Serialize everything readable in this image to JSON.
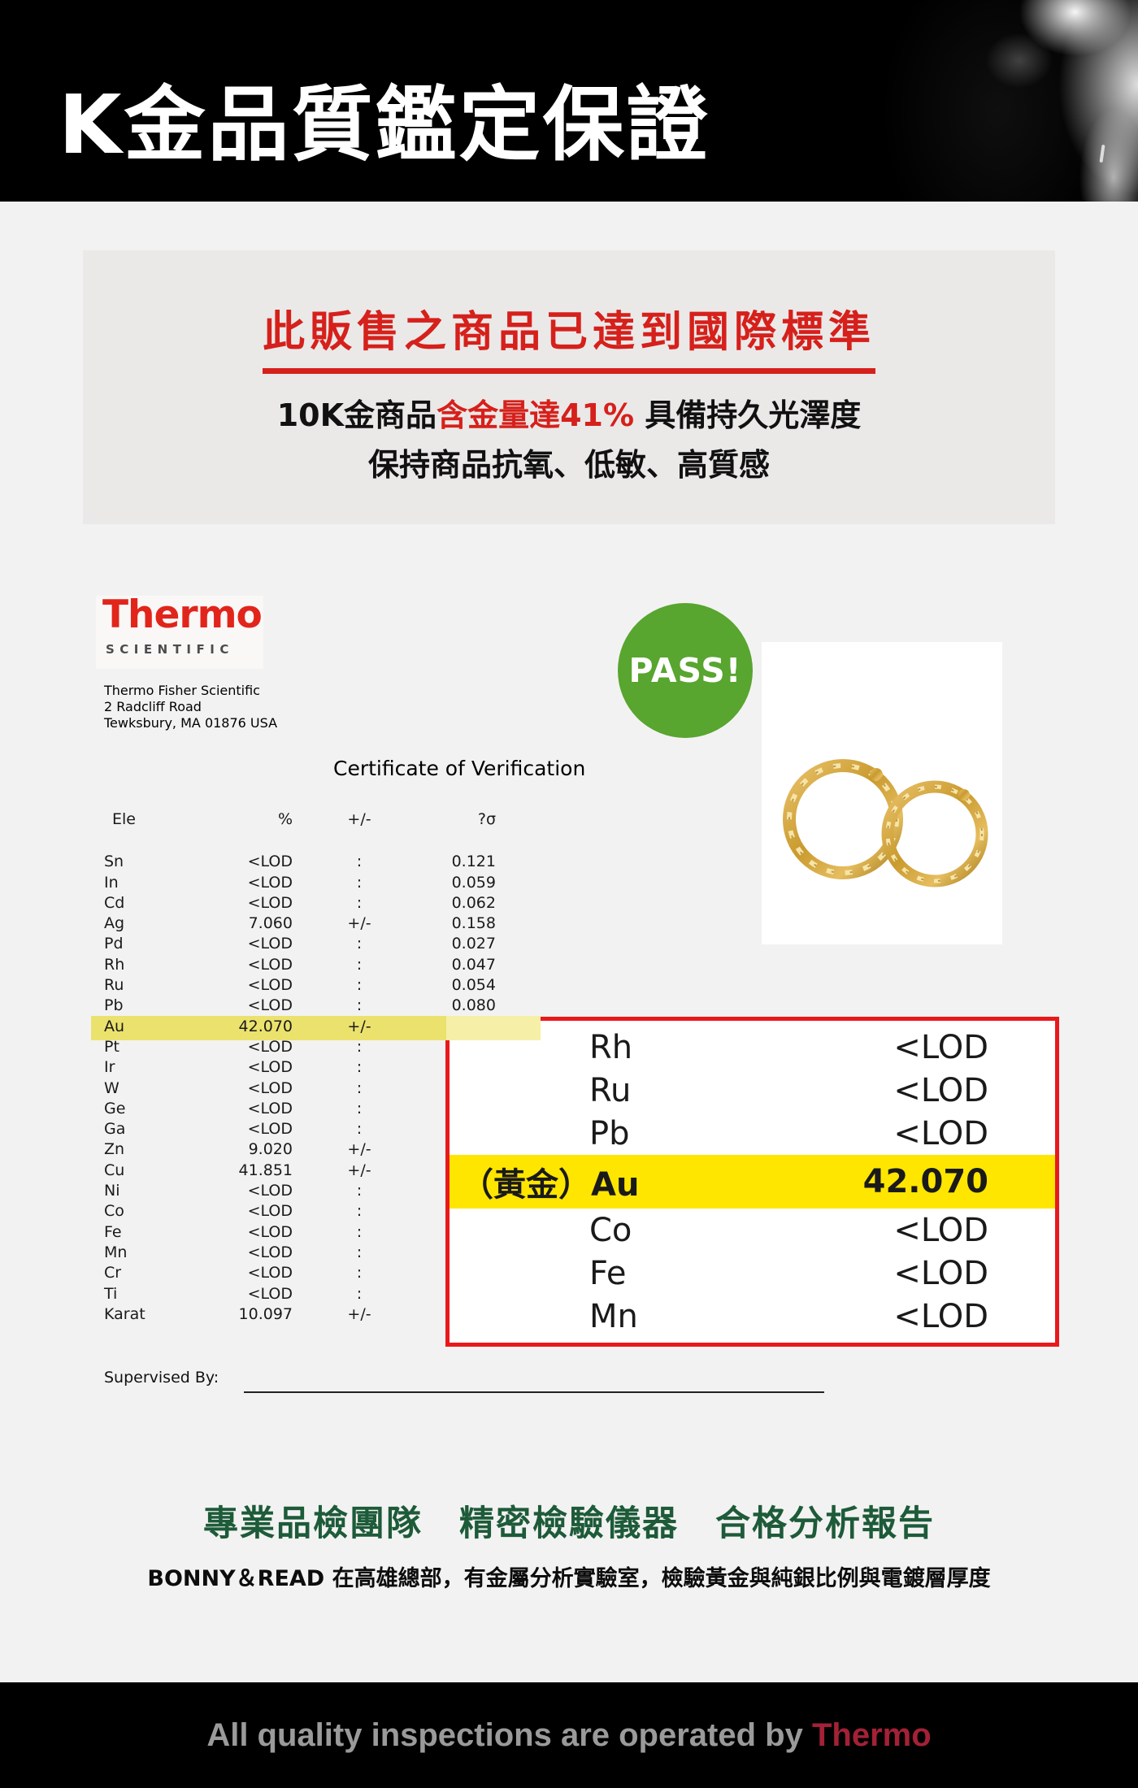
{
  "header": {
    "title": "K金品質鑑定保證"
  },
  "card": {
    "title": "此販售之商品已達到國際標準",
    "line2_a": "10K金商品",
    "line2_b": "含金量達41%",
    "line2_c": " 具備持久光澤度",
    "line3": "保持商品抗氧、低敏、高質感"
  },
  "lab": {
    "brand": "Thermo",
    "brand_sub": "SCIENTIFIC",
    "address_lines": [
      "Thermo Fisher Scientific",
      "2 Radcliff Road",
      "Tewksbury, MA 01876 USA"
    ]
  },
  "pass_badge": "PASS!",
  "certificate": {
    "title": "Certificate of Verification",
    "columns": {
      "el": "Ele",
      "pct": "%",
      "sign": "+/-",
      "sigma": "?σ"
    },
    "rows": [
      {
        "el": "Sn",
        "pct": "<LOD",
        "sign": ":",
        "sigma": "0.121"
      },
      {
        "el": "In",
        "pct": "<LOD",
        "sign": ":",
        "sigma": "0.059"
      },
      {
        "el": "Cd",
        "pct": "<LOD",
        "sign": ":",
        "sigma": "0.062"
      },
      {
        "el": "Ag",
        "pct": "7.060",
        "sign": "+/-",
        "sigma": "0.158"
      },
      {
        "el": "Pd",
        "pct": "<LOD",
        "sign": ":",
        "sigma": "0.027"
      },
      {
        "el": "Rh",
        "pct": "<LOD",
        "sign": ":",
        "sigma": "0.047"
      },
      {
        "el": "Ru",
        "pct": "<LOD",
        "sign": ":",
        "sigma": "0.054"
      },
      {
        "el": "Pb",
        "pct": "<LOD",
        "sign": ":",
        "sigma": "0.080"
      },
      {
        "el": "Au",
        "pct": "42.070",
        "sign": "+/-",
        "sigma": "",
        "highlight": true
      },
      {
        "el": "Pt",
        "pct": "<LOD",
        "sign": ":",
        "sigma": ""
      },
      {
        "el": "Ir",
        "pct": "<LOD",
        "sign": ":",
        "sigma": ""
      },
      {
        "el": "W",
        "pct": "<LOD",
        "sign": ":",
        "sigma": ""
      },
      {
        "el": "Ge",
        "pct": "<LOD",
        "sign": ":",
        "sigma": ""
      },
      {
        "el": "Ga",
        "pct": "<LOD",
        "sign": ":",
        "sigma": ""
      },
      {
        "el": "Zn",
        "pct": "9.020",
        "sign": "+/-",
        "sigma": ""
      },
      {
        "el": "Cu",
        "pct": "41.851",
        "sign": "+/-",
        "sigma": ""
      },
      {
        "el": "Ni",
        "pct": "<LOD",
        "sign": ":",
        "sigma": ""
      },
      {
        "el": "Co",
        "pct": "<LOD",
        "sign": ":",
        "sigma": ""
      },
      {
        "el": "Fe",
        "pct": "<LOD",
        "sign": ":",
        "sigma": ""
      },
      {
        "el": "Mn",
        "pct": "<LOD",
        "sign": ":",
        "sigma": ""
      },
      {
        "el": "Cr",
        "pct": "<LOD",
        "sign": ":",
        "sigma": ""
      },
      {
        "el": "Ti",
        "pct": "<LOD",
        "sign": ":",
        "sigma": ""
      },
      {
        "el": "Karat",
        "pct": "10.097",
        "sign": "+/-",
        "sigma": ""
      }
    ],
    "supervised_label": "Supervised By:"
  },
  "zoom_box": {
    "rows": [
      {
        "el": "Rh",
        "val": "<LOD"
      },
      {
        "el": "Ru",
        "val": "<LOD"
      },
      {
        "el": "Pb",
        "val": "<LOD"
      },
      {
        "el": "（黃金）Au",
        "val": "42.070",
        "highlight": true
      },
      {
        "el": "Co",
        "val": "<LOD"
      },
      {
        "el": "Fe",
        "val": "<LOD"
      },
      {
        "el": "Mn",
        "val": "<LOD"
      }
    ]
  },
  "claims": {
    "heading": "專業品檢團隊　精密檢驗儀器　合格分析報告",
    "subtext": "BONNY＆READ 在高雄總部，有金屬分析實驗室，檢驗黃金與純銀比例與電鍍層厚度"
  },
  "footer": {
    "text": "All quality inspections are operated by ",
    "brand": "Thermo"
  },
  "colors": {
    "accent_red": "#d6201b",
    "thermo_red": "#e1251b",
    "pass_green": "#58a52f",
    "heading_green": "#1d5b39",
    "highlight_yellow": "#ffe600",
    "band_yellow": "#ebe26e",
    "zoom_border_red": "#e8191c",
    "footer_brand_red": "#a32136"
  }
}
